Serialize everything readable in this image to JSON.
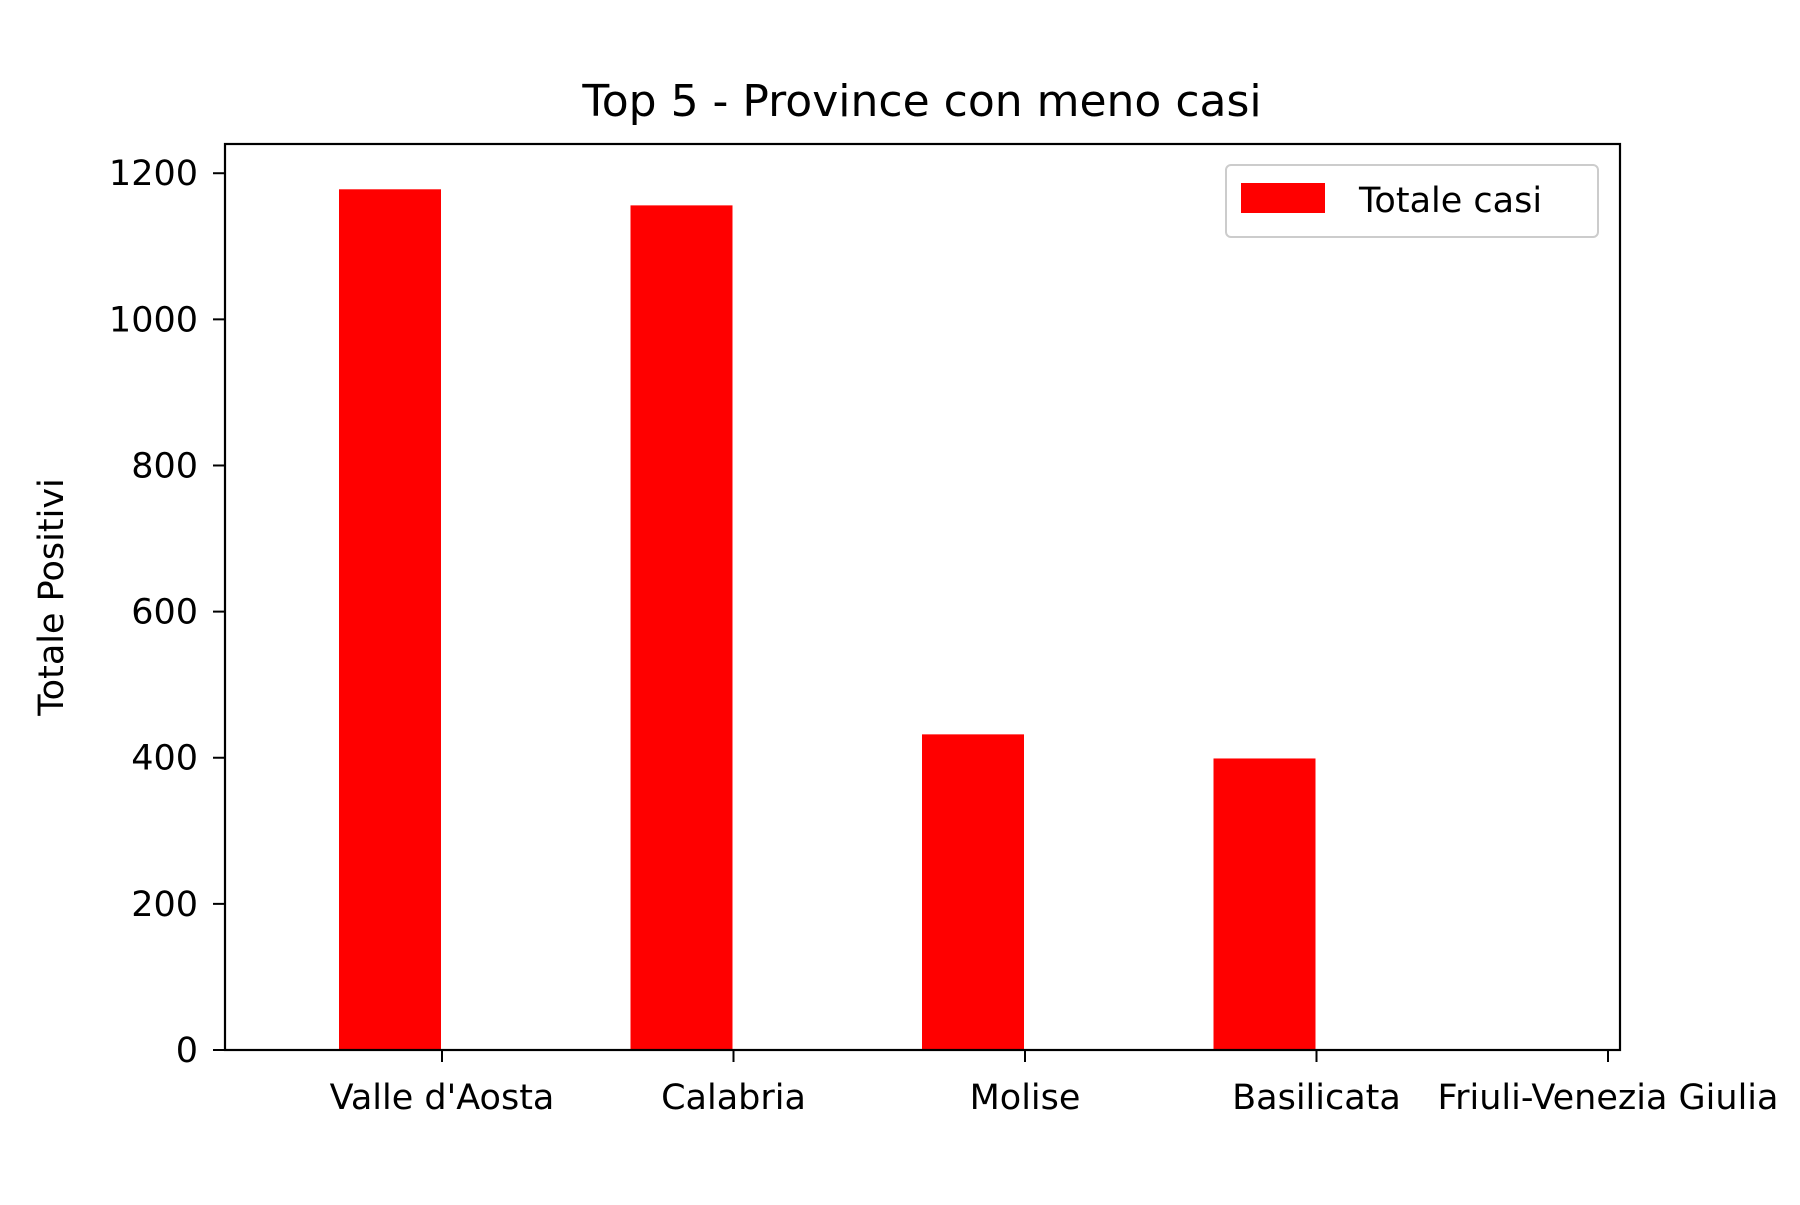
{
  "chart_data": {
    "type": "bar",
    "title": "Top 5 - Province con meno casi",
    "xlabel": "",
    "ylabel": "Totale Positivi",
    "categories": [
      "Valle d'Aosta",
      "Calabria",
      "Molise",
      "Basilicata",
      "Friuli-Venezia Giulia"
    ],
    "series": [
      {
        "name": "Totale casi",
        "color": "#ff0000",
        "values": [
          1178,
          1156,
          432,
          399,
          0
        ]
      }
    ],
    "ylim": [
      0,
      1240
    ],
    "yticks": [
      0,
      200,
      400,
      600,
      800,
      1000,
      1200
    ],
    "ytick_labels": [
      "0",
      "200",
      "400",
      "600",
      "800",
      "1000",
      "1200"
    ],
    "grid": false,
    "legend_position": "top-right"
  }
}
